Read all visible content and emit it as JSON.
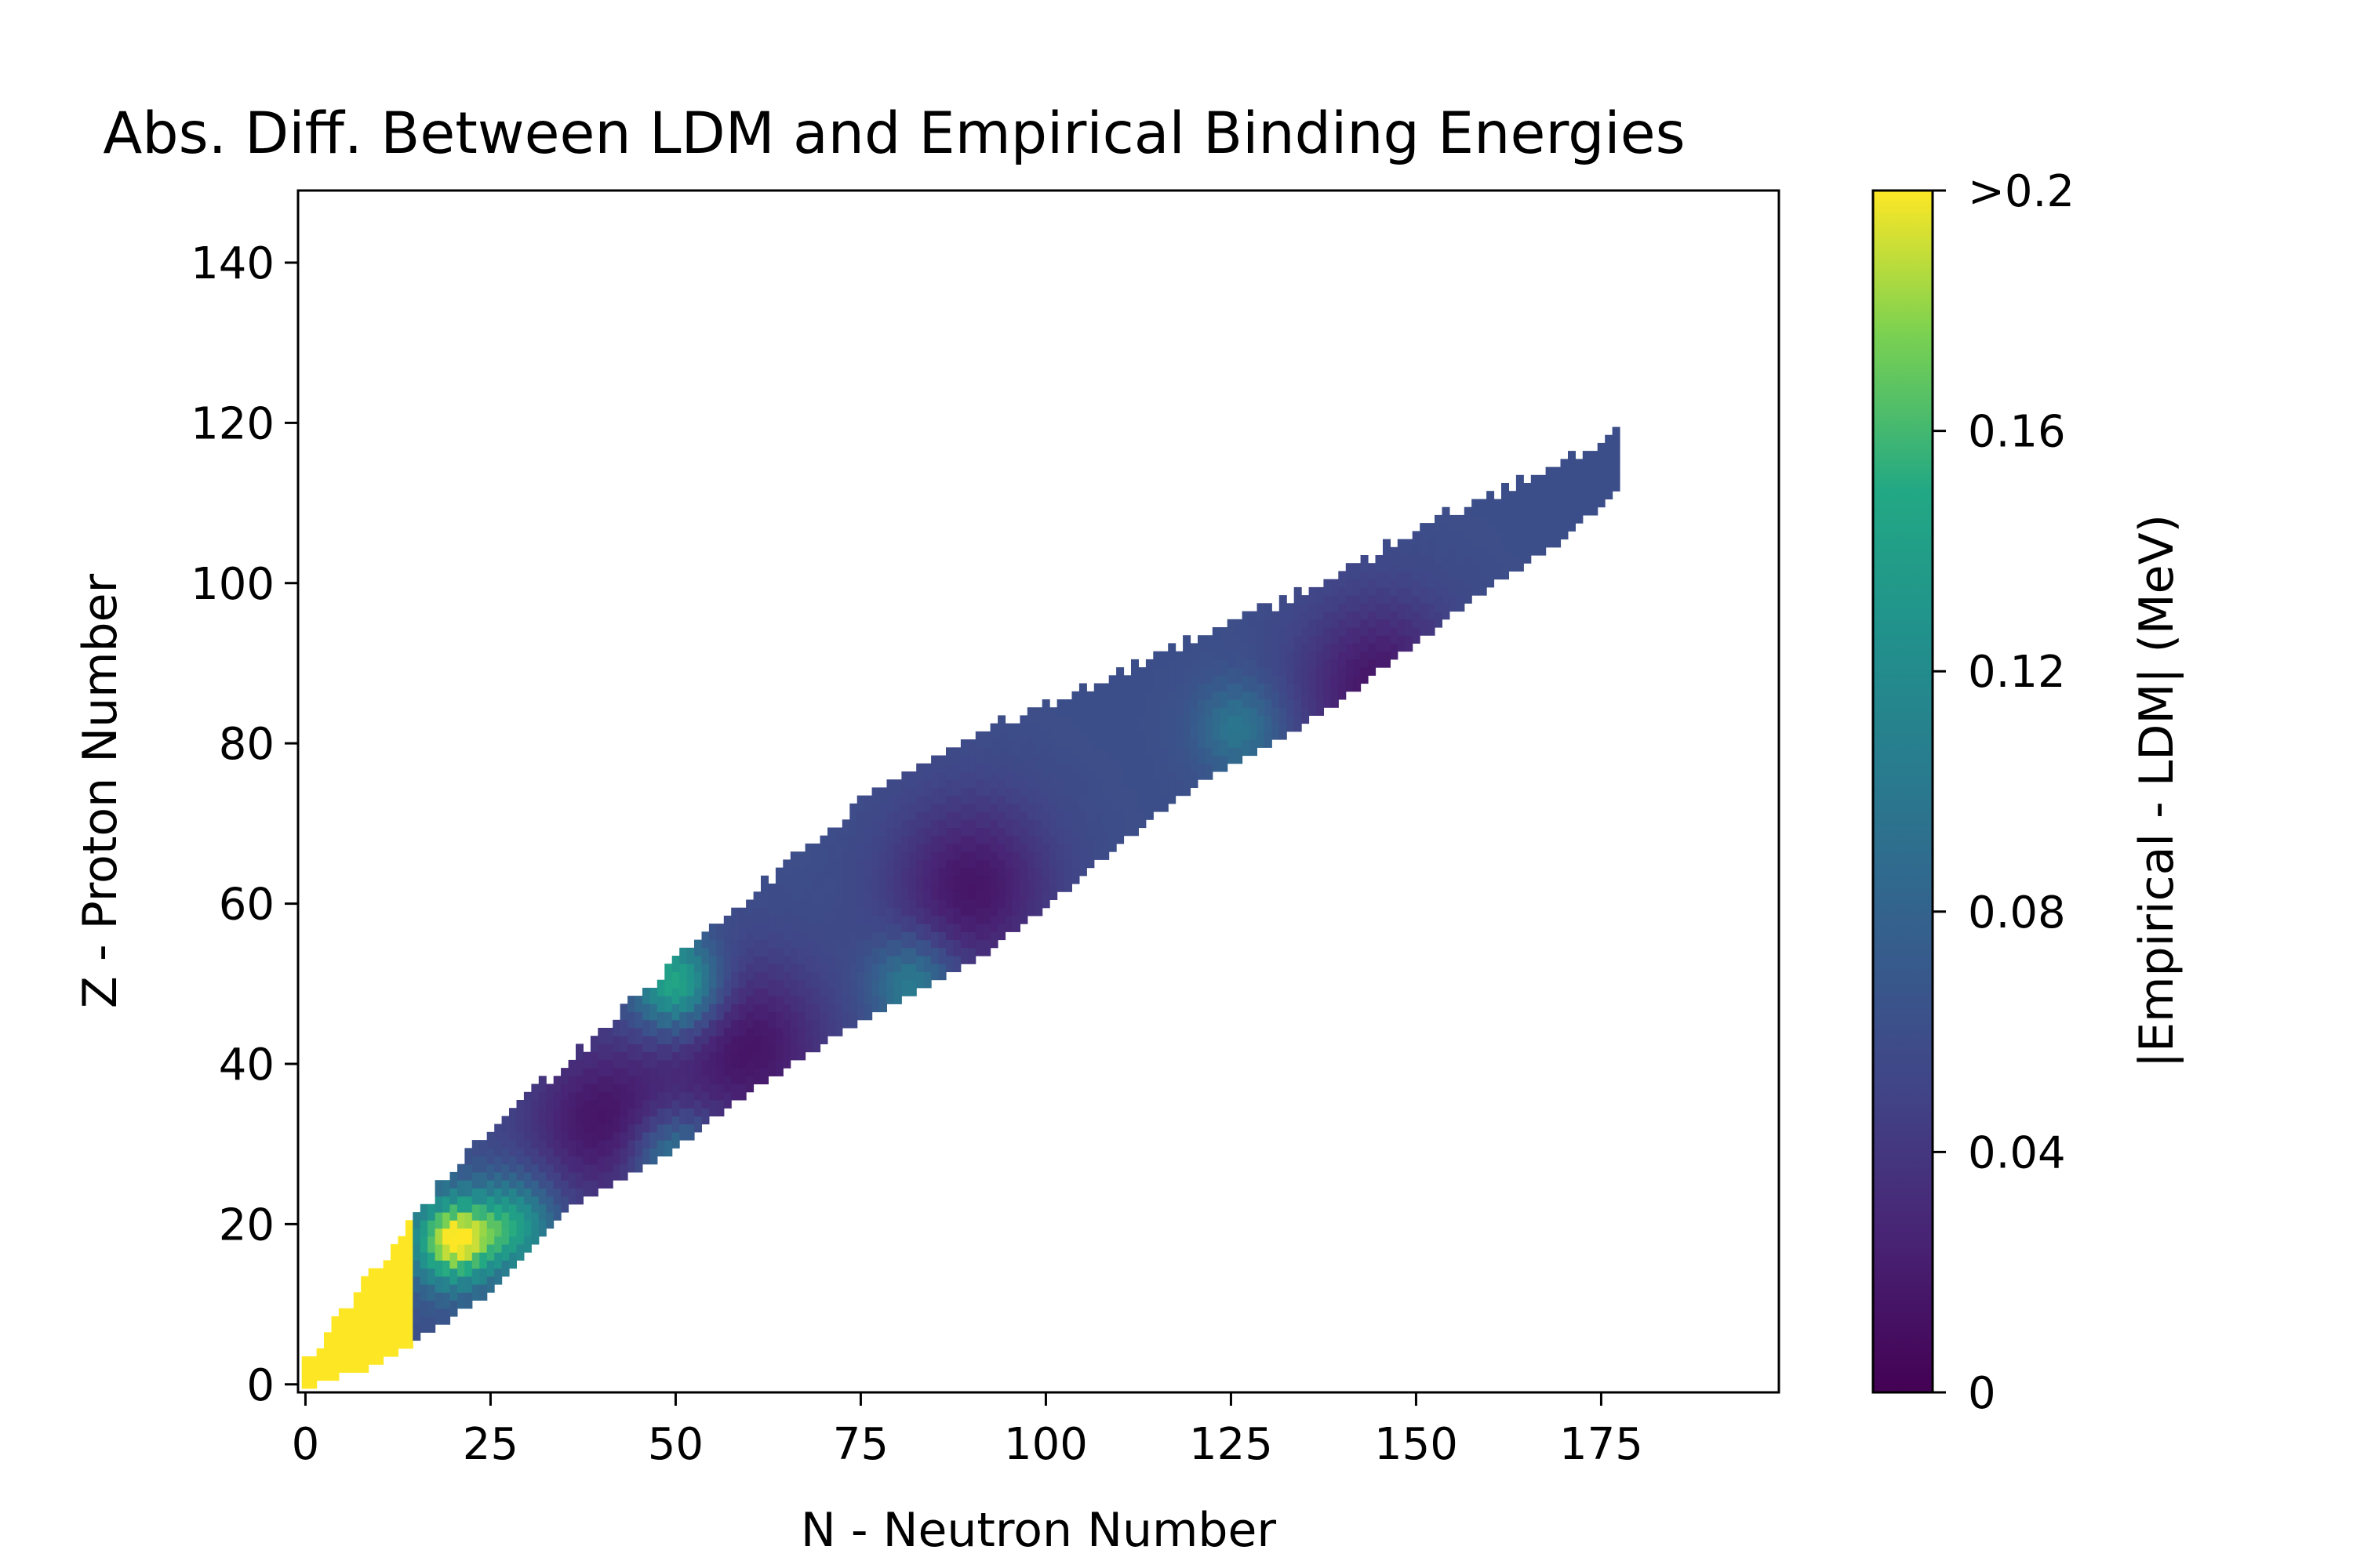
{
  "chart_data": {
    "type": "heatmap",
    "title": "Abs. Diff. Between LDM and Empirical Binding Energies",
    "xlabel": "N - Neutron Number",
    "ylabel": "Z - Proton Number",
    "xlim": [
      -1,
      199
    ],
    "ylim": [
      -1,
      149
    ],
    "xticks": [
      0,
      25,
      50,
      75,
      100,
      125,
      150,
      175
    ],
    "xtick_labels": [
      "0",
      "25",
      "50",
      "75",
      "100",
      "125",
      "150",
      "175"
    ],
    "yticks": [
      0,
      20,
      40,
      60,
      80,
      100,
      120,
      140
    ],
    "ytick_labels": [
      "0",
      "20",
      "40",
      "60",
      "80",
      "100",
      "120",
      "140"
    ],
    "colormap": "viridis",
    "colorbar": {
      "label": "|Empirical - LDM| (MeV)",
      "range": [
        0,
        0.2
      ],
      "ticks": [
        0,
        0.04,
        0.08,
        0.12,
        0.16,
        0.2
      ],
      "tick_labels": [
        "0",
        "0.04",
        "0.08",
        "0.12",
        "0.16",
        ">0.2"
      ]
    },
    "region": {
      "description_axis": "N",
      "lower_Z_edge": [
        [
          0,
          0
        ],
        [
          10,
          3
        ],
        [
          25,
          12
        ],
        [
          35,
          22
        ],
        [
          50,
          30
        ],
        [
          60,
          37
        ],
        [
          70,
          43
        ],
        [
          80,
          48
        ],
        [
          90,
          53
        ],
        [
          100,
          60
        ],
        [
          110,
          68
        ],
        [
          120,
          75
        ],
        [
          130,
          80
        ],
        [
          140,
          86
        ],
        [
          150,
          93
        ],
        [
          160,
          100
        ],
        [
          170,
          106
        ],
        [
          177,
          112
        ]
      ],
      "upper_Z_edge": [
        [
          0,
          2
        ],
        [
          10,
          14
        ],
        [
          20,
          26
        ],
        [
          30,
          35
        ],
        [
          40,
          43
        ],
        [
          50,
          52
        ],
        [
          60,
          60
        ],
        [
          70,
          68
        ],
        [
          80,
          75
        ],
        [
          90,
          80
        ],
        [
          100,
          84
        ],
        [
          110,
          88
        ],
        [
          120,
          92
        ],
        [
          130,
          96
        ],
        [
          140,
          100
        ],
        [
          150,
          106
        ],
        [
          160,
          110
        ],
        [
          170,
          114
        ],
        [
          177,
          118
        ]
      ]
    },
    "hotspots": [
      {
        "N": 20,
        "Z": 18,
        "value": 0.2
      },
      {
        "N": 50,
        "Z": 50,
        "value": 0.16
      },
      {
        "N": 28,
        "Z": 20,
        "value": 0.14
      },
      {
        "N": 82,
        "Z": 50,
        "value": 0.11
      },
      {
        "N": 126,
        "Z": 82,
        "value": 0.1
      },
      {
        "N": 50,
        "Z": 28,
        "value": 0.12
      }
    ],
    "minima": [
      {
        "N": 60,
        "Z": 42,
        "value": 0.0
      },
      {
        "N": 40,
        "Z": 33,
        "value": 0.0
      },
      {
        "N": 90,
        "Z": 62,
        "value": 0.02
      },
      {
        "N": 145,
        "Z": 87,
        "value": 0.02
      }
    ]
  }
}
